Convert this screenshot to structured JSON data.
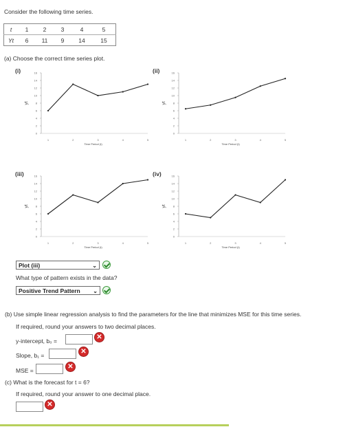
{
  "intro": "Consider the following time series.",
  "series": {
    "t_label": "t",
    "y_label": "Yt",
    "t": [
      "1",
      "2",
      "3",
      "4",
      "5"
    ],
    "y": [
      "6",
      "11",
      "9",
      "14",
      "15"
    ]
  },
  "part_a": {
    "prompt": "(a) Choose the correct time series plot.",
    "plots": [
      {
        "label": "(i)",
        "values": [
          6,
          13,
          10,
          11,
          13
        ]
      },
      {
        "label": "(ii)",
        "values": [
          6.5,
          7.5,
          9.5,
          12.5,
          14.5
        ]
      },
      {
        "label": "(iii)",
        "values": [
          6,
          11,
          9,
          14,
          15
        ]
      },
      {
        "label": "(iv)",
        "values": [
          6,
          5,
          11,
          9,
          15
        ]
      }
    ],
    "axis": {
      "ylabel": "yt",
      "xlabel": "Time Period (t)",
      "y_ticks": [
        "0",
        "2",
        "4",
        "6",
        "8",
        "10",
        "12",
        "14",
        "16"
      ],
      "x_ticks": [
        "1",
        "2",
        "3",
        "4",
        "5"
      ]
    },
    "plot_answer": "Plot (iii)",
    "pattern_question": "What type of pattern exists in the data?",
    "pattern_answer": "Positive Trend Pattern"
  },
  "part_b": {
    "prompt": "(b) Use simple linear regression analysis to find the parameters for the line that minimizes MSE for this time series.",
    "round_note": "If required, round your answers to two decimal places.",
    "intercept_label": "y-intercept, b₀ =",
    "slope_label": "Slope, b₁ =",
    "mse_label": "MSE =",
    "intercept_value": "",
    "slope_value": "",
    "mse_value": ""
  },
  "part_c": {
    "prompt": "(c) What is the forecast for t = 6?",
    "round_note": "If required, round your answer to one decimal place.",
    "forecast_value": ""
  },
  "colors": {
    "check": "#2e8b2e",
    "error": "#d42a2a",
    "accent_bar": "#b6cf5b"
  }
}
